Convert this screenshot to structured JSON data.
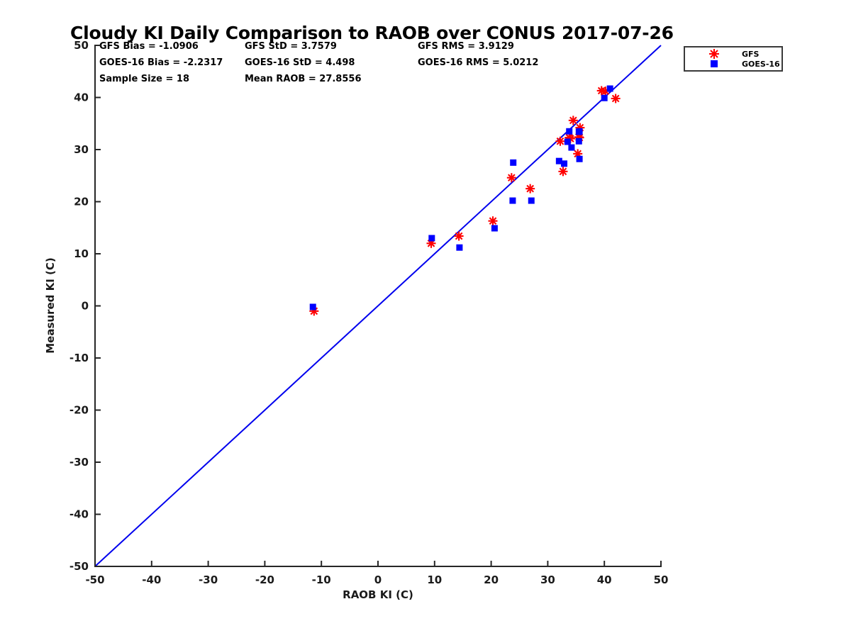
{
  "title": "Cloudy KI Daily Comparison to RAOB over CONUS 2017-07-26",
  "stats": {
    "gfs_bias": "GFS Bias = -1.0906",
    "gfs_std": "GFS StD = 3.7579",
    "gfs_rms": "GFS RMS = 3.9129",
    "goes16_bias": "GOES-16 Bias = -2.2317",
    "goes16_std": "GOES-16 StD = 4.498",
    "goes16_rms": "GOES-16 RMS = 5.0212",
    "sample_size": "Sample Size = 18",
    "mean_raob": "Mean RAOB = 27.8556"
  },
  "legend": {
    "items": [
      {
        "label": "GFS",
        "marker": "asterisk",
        "color": "#FF0000"
      },
      {
        "label": "GOES-16",
        "marker": "square",
        "color": "#0000FF"
      }
    ]
  },
  "chart_data": {
    "type": "scatter",
    "title": "Cloudy KI Daily Comparison to RAOB over CONUS 2017-07-26",
    "xlabel": "RAOB KI (C)",
    "ylabel": "Measured KI (C)",
    "xlim": [
      -50,
      50
    ],
    "ylim": [
      -50,
      50
    ],
    "xticks": [
      -50,
      -40,
      -30,
      -20,
      -10,
      0,
      10,
      20,
      30,
      40,
      50
    ],
    "yticks": [
      -50,
      -40,
      -30,
      -20,
      -10,
      0,
      10,
      20,
      30,
      40,
      50
    ],
    "grid": false,
    "legend_position": "outside-top-right",
    "axis_color": "#262626",
    "tick_label_color": "#1a1a1a",
    "reference_line": {
      "type": "identity 1:1",
      "from": [
        -50,
        -50
      ],
      "to": [
        50,
        50
      ],
      "color": "#0000EE",
      "width": 2
    },
    "series": [
      {
        "name": "GFS",
        "marker": "asterisk",
        "color": "#FF0000",
        "points": [
          [
            -11.3,
            -1.0
          ],
          [
            9.4,
            12.0
          ],
          [
            14.3,
            13.4
          ],
          [
            20.3,
            16.3
          ],
          [
            23.6,
            24.6
          ],
          [
            26.9,
            22.5
          ],
          [
            32.7,
            25.8
          ],
          [
            32.2,
            31.6
          ],
          [
            33.8,
            32.3
          ],
          [
            34.0,
            32.1
          ],
          [
            34.5,
            35.6
          ],
          [
            35.7,
            34.2
          ],
          [
            35.5,
            32.4
          ],
          [
            35.6,
            32.3
          ],
          [
            35.3,
            29.2
          ],
          [
            39.5,
            41.3
          ],
          [
            40.2,
            41.2
          ],
          [
            42.0,
            39.8
          ]
        ]
      },
      {
        "name": "GOES-16",
        "marker": "square",
        "color": "#0000FF",
        "points": [
          [
            -11.5,
            -0.2
          ],
          [
            9.5,
            13.0
          ],
          [
            14.4,
            11.2
          ],
          [
            20.6,
            14.9
          ],
          [
            23.9,
            27.5
          ],
          [
            23.8,
            20.2
          ],
          [
            27.1,
            20.2
          ],
          [
            32.0,
            27.8
          ],
          [
            32.9,
            27.3
          ],
          [
            33.8,
            33.5
          ],
          [
            35.6,
            33.5
          ],
          [
            35.5,
            33.4
          ],
          [
            33.5,
            31.5
          ],
          [
            35.5,
            31.6
          ],
          [
            34.2,
            30.4
          ],
          [
            35.6,
            28.2
          ],
          [
            40.0,
            39.9
          ],
          [
            41.0,
            41.7
          ]
        ]
      }
    ]
  }
}
